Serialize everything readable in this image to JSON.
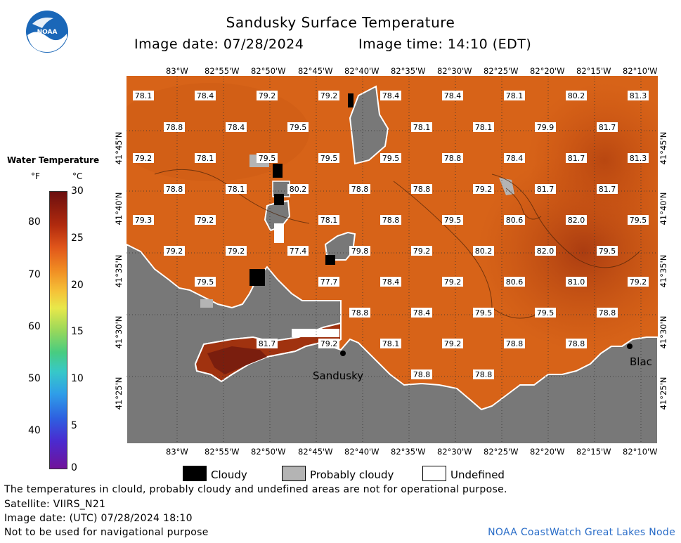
{
  "header": {
    "title": "Sandusky Surface Temperature",
    "image_date": "Image date: 07/28/2024",
    "image_time": "Image time: 14:10 (EDT)",
    "logo_text": "NOAA"
  },
  "legend": {
    "title": "Water Temperature",
    "unit_f": "°F",
    "unit_c": "°C",
    "f_ticks": [
      "80",
      "70",
      "60",
      "50",
      "40"
    ],
    "c_ticks": [
      "30",
      "25",
      "20",
      "15",
      "10",
      "5",
      "0"
    ]
  },
  "axes": {
    "lon": [
      "83°W",
      "82°55'W",
      "82°50'W",
      "82°45'W",
      "82°40'W",
      "82°35'W",
      "82°30'W",
      "82°25'W",
      "82°20'W",
      "82°15'W",
      "82°10'W"
    ],
    "lat": [
      "41°45'N",
      "41°40'N",
      "41°35'N",
      "41°30'N",
      "41°25'N"
    ]
  },
  "places": {
    "sandusky": "Sandusky",
    "black_river": "Blac"
  },
  "temperatures": [
    "78.1",
    "78.4",
    "79.2",
    "79.2",
    "78.4",
    "78.4",
    "78.1",
    "80.2",
    "81.3",
    "78.8",
    "78.4",
    "79.5",
    "78.1",
    "78.1",
    "79.9",
    "81.7",
    "79.2",
    "78.1",
    "79.5",
    "79.5",
    "79.5",
    "78.8",
    "78.4",
    "81.7",
    "81.3",
    "78.8",
    "78.1",
    "80.2",
    "78.8",
    "78.8",
    "79.2",
    "81.7",
    "81.7",
    "79.3",
    "79.2",
    "78.1",
    "78.8",
    "79.5",
    "80.6",
    "82.0",
    "79.5",
    "79.2",
    "79.2",
    "77.4",
    "79.8",
    "79.2",
    "80.2",
    "82.0",
    "79.5",
    "79.5",
    "77.7",
    "78.4",
    "79.2",
    "80.6",
    "81.0",
    "79.2",
    "78.8",
    "78.4",
    "79.5",
    "79.5",
    "78.8",
    "81.7",
    "79.2",
    "78.1",
    "79.2",
    "78.8",
    "78.8",
    "78.8",
    "78.8"
  ],
  "key": {
    "cloudy": "Cloudy",
    "probably_cloudy": "Probably cloudy",
    "undefined": "Undefined"
  },
  "footer": {
    "disclaimer": "The temperatures in clould, probably cloudy and undefined areas are not for operational purpose.",
    "satellite": "Satellite: VIIRS_N21",
    "utc_date": "Image date: (UTC) 07/28/2024  18:10",
    "nav_warning": "Not to be used for navigational purpose",
    "node": "NOAA CoastWatch Great Lakes Node"
  },
  "colors": {
    "water": "#d9661a",
    "water_warm": "#b8440e",
    "water_hot": "#8a2a10",
    "land": "#777777",
    "cloud": "#000000",
    "probably_cloudy": "#b4b4b4",
    "undefined": "#ffffff",
    "node_text": "#2a6dc8"
  }
}
